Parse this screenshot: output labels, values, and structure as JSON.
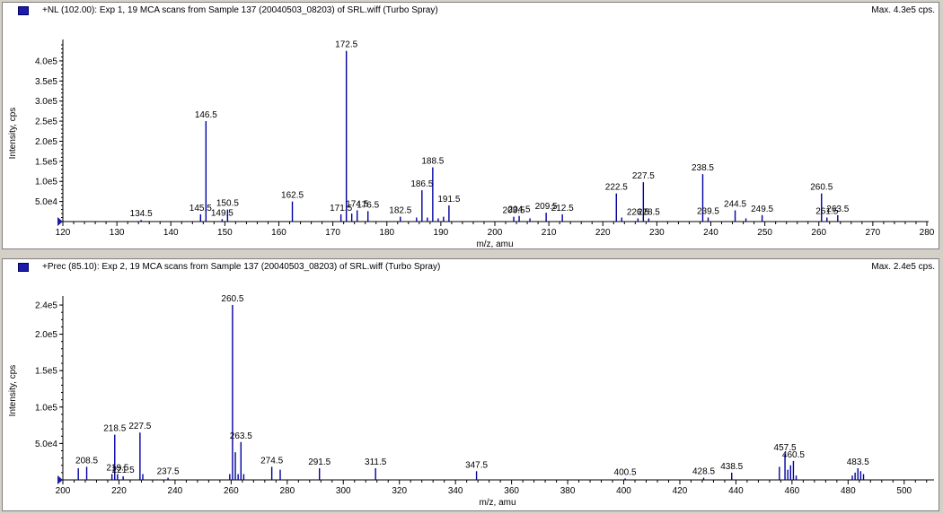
{
  "chart_data": [
    {
      "type": "bar",
      "title": "+NL (102.00): Exp 1, 19 MCA scans from Sample 137 (20040503_08203) of SRL.wiff (Turbo Spray)",
      "max_label": "Max. 4.3e5 cps.",
      "xlabel": "m/z, amu",
      "ylabel": "Intensity, cps",
      "xlim": [
        120,
        280
      ],
      "ylim": [
        0,
        440000
      ],
      "x_ticks": [
        120,
        130,
        140,
        150,
        160,
        170,
        180,
        190,
        200,
        210,
        220,
        230,
        240,
        250,
        260,
        270,
        280
      ],
      "y_ticks": [
        {
          "value": 50000,
          "label": "5.0e4"
        },
        {
          "value": 100000,
          "label": "1.0e5"
        },
        {
          "value": 150000,
          "label": "1.5e5"
        },
        {
          "value": 200000,
          "label": "2.0e5"
        },
        {
          "value": 250000,
          "label": "2.5e5"
        },
        {
          "value": 300000,
          "label": "3.0e5"
        },
        {
          "value": 350000,
          "label": "3.5e5"
        },
        {
          "value": 400000,
          "label": "4.0e5"
        }
      ],
      "peaks": [
        {
          "x": 134.5,
          "y": 4000,
          "label": "134.5"
        },
        {
          "x": 145.5,
          "y": 18000,
          "label": "145.5"
        },
        {
          "x": 146.5,
          "y": 250000,
          "label": "146.5"
        },
        {
          "x": 149.5,
          "y": 6000,
          "label": "149.5"
        },
        {
          "x": 150.5,
          "y": 30000,
          "label": "150.5"
        },
        {
          "x": 162.5,
          "y": 50000,
          "label": "162.5"
        },
        {
          "x": 171.5,
          "y": 18000,
          "label": "171.5"
        },
        {
          "x": 172.5,
          "y": 425000,
          "label": "172.5"
        },
        {
          "x": 173.5,
          "y": 20000,
          "label": ""
        },
        {
          "x": 174.5,
          "y": 28000,
          "label": "174.5"
        },
        {
          "x": 176.5,
          "y": 26000,
          "label": "176.5"
        },
        {
          "x": 182.5,
          "y": 12000,
          "label": "182.5"
        },
        {
          "x": 185.5,
          "y": 10000,
          "label": ""
        },
        {
          "x": 186.5,
          "y": 78000,
          "label": "186.5"
        },
        {
          "x": 187.5,
          "y": 10000,
          "label": ""
        },
        {
          "x": 188.5,
          "y": 135000,
          "label": "188.5"
        },
        {
          "x": 189.5,
          "y": 8000,
          "label": ""
        },
        {
          "x": 190.5,
          "y": 12000,
          "label": ""
        },
        {
          "x": 191.5,
          "y": 40000,
          "label": "191.5"
        },
        {
          "x": 203.5,
          "y": 12000,
          "label": "203.5"
        },
        {
          "x": 204.5,
          "y": 14000,
          "label": "204.5"
        },
        {
          "x": 206.5,
          "y": 8000,
          "label": ""
        },
        {
          "x": 209.5,
          "y": 22000,
          "label": "209.5"
        },
        {
          "x": 212.5,
          "y": 18000,
          "label": "212.5"
        },
        {
          "x": 222.5,
          "y": 70000,
          "label": "222.5"
        },
        {
          "x": 223.5,
          "y": 10000,
          "label": ""
        },
        {
          "x": 226.5,
          "y": 8000,
          "label": "226.5"
        },
        {
          "x": 227.5,
          "y": 98000,
          "label": "227.5"
        },
        {
          "x": 228.5,
          "y": 8000,
          "label": "228.5"
        },
        {
          "x": 238.5,
          "y": 118000,
          "label": "238.5"
        },
        {
          "x": 239.5,
          "y": 10000,
          "label": "239.5"
        },
        {
          "x": 244.5,
          "y": 28000,
          "label": "244.5"
        },
        {
          "x": 246.5,
          "y": 8000,
          "label": ""
        },
        {
          "x": 249.5,
          "y": 16000,
          "label": "249.5"
        },
        {
          "x": 260.5,
          "y": 70000,
          "label": "260.5"
        },
        {
          "x": 261.5,
          "y": 10000,
          "label": "261.5"
        },
        {
          "x": 263.5,
          "y": 16000,
          "label": "263.5"
        }
      ]
    },
    {
      "type": "bar",
      "title": "+Prec (85.10): Exp 2, 19 MCA scans from Sample 137 (20040503_08203) of SRL.wiff (Turbo Spray)",
      "max_label": "Max. 2.4e5 cps.",
      "xlabel": "m/z, amu",
      "ylabel": "Intensity, cps",
      "xlim": [
        200,
        510
      ],
      "ylim": [
        0,
        245000
      ],
      "x_ticks": [
        200,
        220,
        240,
        260,
        280,
        300,
        320,
        340,
        360,
        380,
        400,
        420,
        440,
        460,
        480,
        500
      ],
      "y_ticks": [
        {
          "value": 50000,
          "label": "5.0e4"
        },
        {
          "value": 100000,
          "label": "1.0e5"
        },
        {
          "value": 150000,
          "label": "1.5e5"
        },
        {
          "value": 200000,
          "label": "2.0e5"
        },
        {
          "value": 240000,
          "label": "2.4e5"
        }
      ],
      "peaks": [
        {
          "x": 205.5,
          "y": 16000,
          "label": ""
        },
        {
          "x": 208.5,
          "y": 18000,
          "label": "208.5"
        },
        {
          "x": 217.5,
          "y": 8000,
          "label": ""
        },
        {
          "x": 218.5,
          "y": 62000,
          "label": "218.5"
        },
        {
          "x": 219.5,
          "y": 8000,
          "label": "219.5"
        },
        {
          "x": 221.5,
          "y": 5000,
          "label": "221.5"
        },
        {
          "x": 227.5,
          "y": 65000,
          "label": "227.5"
        },
        {
          "x": 228.5,
          "y": 8000,
          "label": ""
        },
        {
          "x": 237.5,
          "y": 3000,
          "label": "237.5"
        },
        {
          "x": 259.5,
          "y": 8000,
          "label": ""
        },
        {
          "x": 260.5,
          "y": 240000,
          "label": "260.5"
        },
        {
          "x": 261.5,
          "y": 38000,
          "label": ""
        },
        {
          "x": 262.5,
          "y": 8000,
          "label": ""
        },
        {
          "x": 263.5,
          "y": 52000,
          "label": "263.5"
        },
        {
          "x": 264.5,
          "y": 8000,
          "label": ""
        },
        {
          "x": 274.5,
          "y": 18000,
          "label": "274.5"
        },
        {
          "x": 277.5,
          "y": 14000,
          "label": ""
        },
        {
          "x": 291.5,
          "y": 16000,
          "label": "291.5"
        },
        {
          "x": 311.5,
          "y": 16000,
          "label": "311.5"
        },
        {
          "x": 347.5,
          "y": 12000,
          "label": "347.5"
        },
        {
          "x": 400.5,
          "y": 2000,
          "label": "400.5"
        },
        {
          "x": 428.5,
          "y": 3000,
          "label": "428.5"
        },
        {
          "x": 438.5,
          "y": 10000,
          "label": "438.5"
        },
        {
          "x": 455.5,
          "y": 18000,
          "label": ""
        },
        {
          "x": 457.5,
          "y": 36000,
          "label": "457.5"
        },
        {
          "x": 458.5,
          "y": 14000,
          "label": ""
        },
        {
          "x": 459.5,
          "y": 20000,
          "label": ""
        },
        {
          "x": 460.5,
          "y": 26000,
          "label": "460.5"
        },
        {
          "x": 461.5,
          "y": 6000,
          "label": ""
        },
        {
          "x": 481.5,
          "y": 6000,
          "label": ""
        },
        {
          "x": 482.5,
          "y": 10000,
          "label": ""
        },
        {
          "x": 483.5,
          "y": 16000,
          "label": "483.5"
        },
        {
          "x": 484.5,
          "y": 12000,
          "label": ""
        },
        {
          "x": 485.5,
          "y": 8000,
          "label": ""
        }
      ]
    }
  ],
  "colors": {
    "peak": "#0000a0",
    "axis": "#000000",
    "marker": "#1c1ca8"
  }
}
